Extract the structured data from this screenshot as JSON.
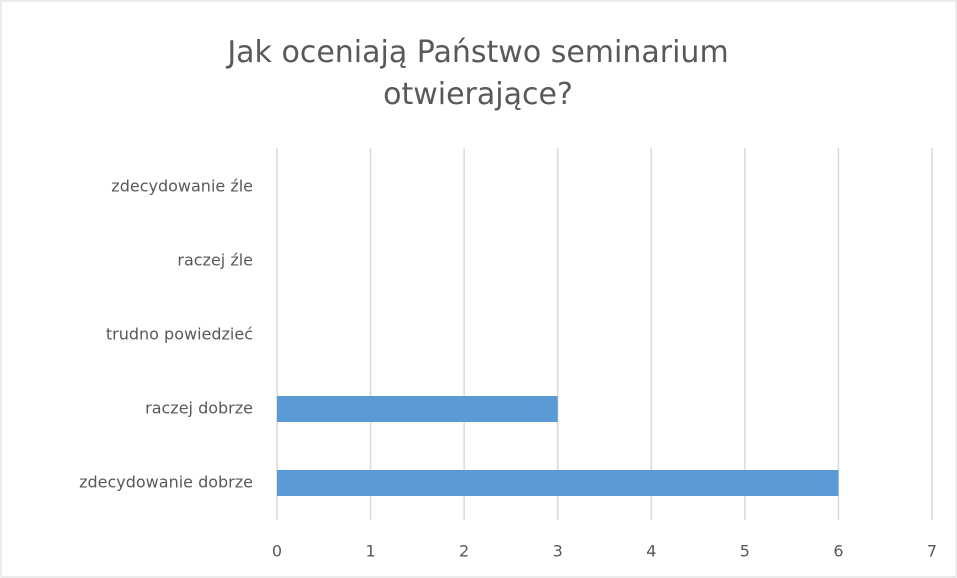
{
  "chart_data": {
    "type": "bar",
    "orientation": "horizontal",
    "title": "Jak oceniają Państwo seminarium otwierające?",
    "categories": [
      "zdecydowanie źle",
      "raczej źle",
      "trudno powiedzieć",
      "raczej dobrze",
      "zdecydowanie dobrze"
    ],
    "values": [
      0,
      0,
      0,
      3,
      6
    ],
    "color": "#5b9bd5",
    "xlim": [
      0,
      7
    ],
    "xticks": [
      0,
      1,
      2,
      3,
      4,
      5,
      6,
      7
    ],
    "grid": true
  }
}
